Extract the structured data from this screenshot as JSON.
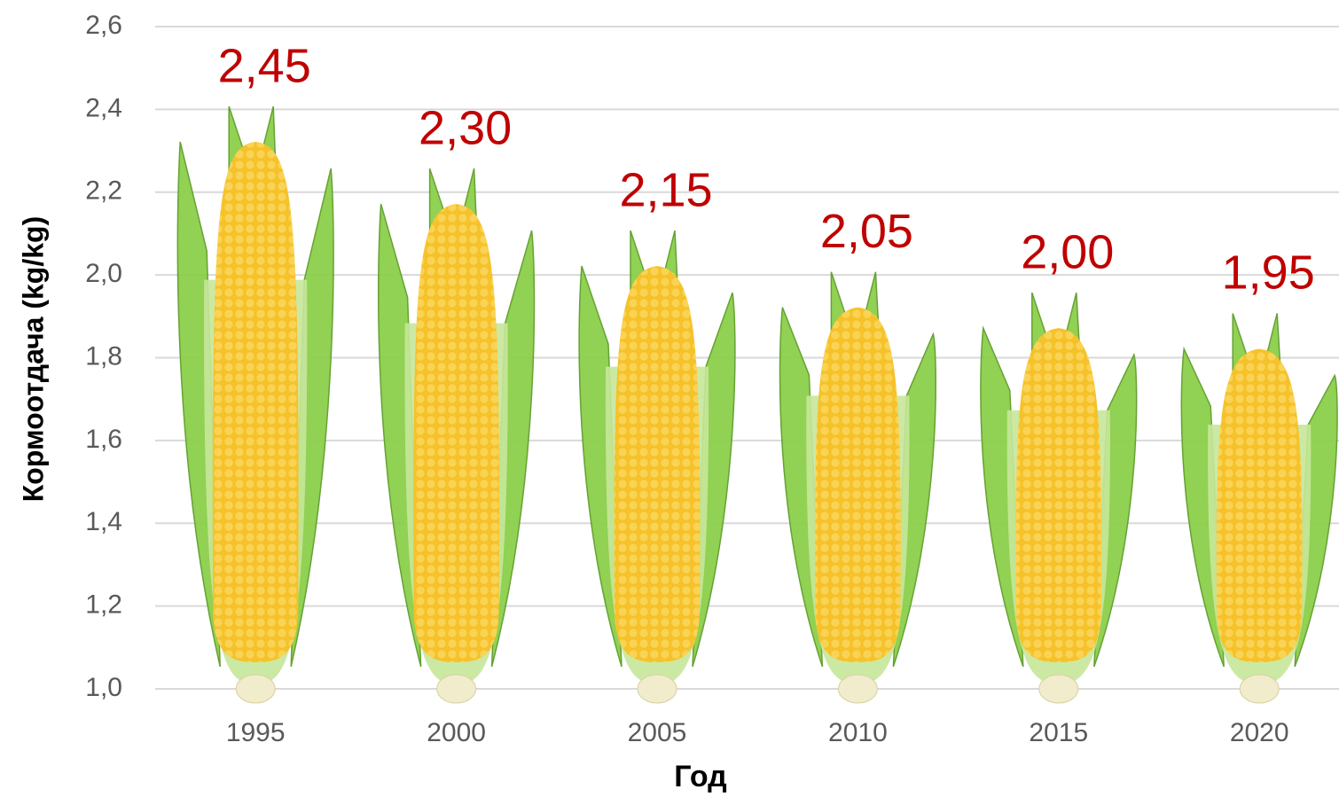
{
  "chart_data": {
    "type": "bar",
    "x_label": "Год",
    "y_label": "Кормоотдача (kg/kg)",
    "categories": [
      "1995",
      "2000",
      "2005",
      "2010",
      "2015",
      "2020"
    ],
    "values": [
      2.45,
      2.3,
      2.15,
      2.05,
      2.0,
      1.95
    ],
    "value_labels": [
      "2,45",
      "2,30",
      "2,15",
      "2,05",
      "2,00",
      "1,95"
    ],
    "color": "#f5c22a",
    "label_color": "#c00000",
    "ylim": [
      1.0,
      2.6
    ],
    "yticks": [
      {
        "value": 1.0,
        "label": "1,0"
      },
      {
        "value": 1.2,
        "label": "1,2"
      },
      {
        "value": 1.4,
        "label": "1,4"
      },
      {
        "value": 1.6,
        "label": "1,6"
      },
      {
        "value": 1.8,
        "label": "1,8"
      },
      {
        "value": 2.0,
        "label": "2,0"
      },
      {
        "value": 2.2,
        "label": "2,2"
      },
      {
        "value": 2.4,
        "label": "2,4"
      },
      {
        "value": 2.6,
        "label": "2,6"
      }
    ],
    "grid": true
  }
}
